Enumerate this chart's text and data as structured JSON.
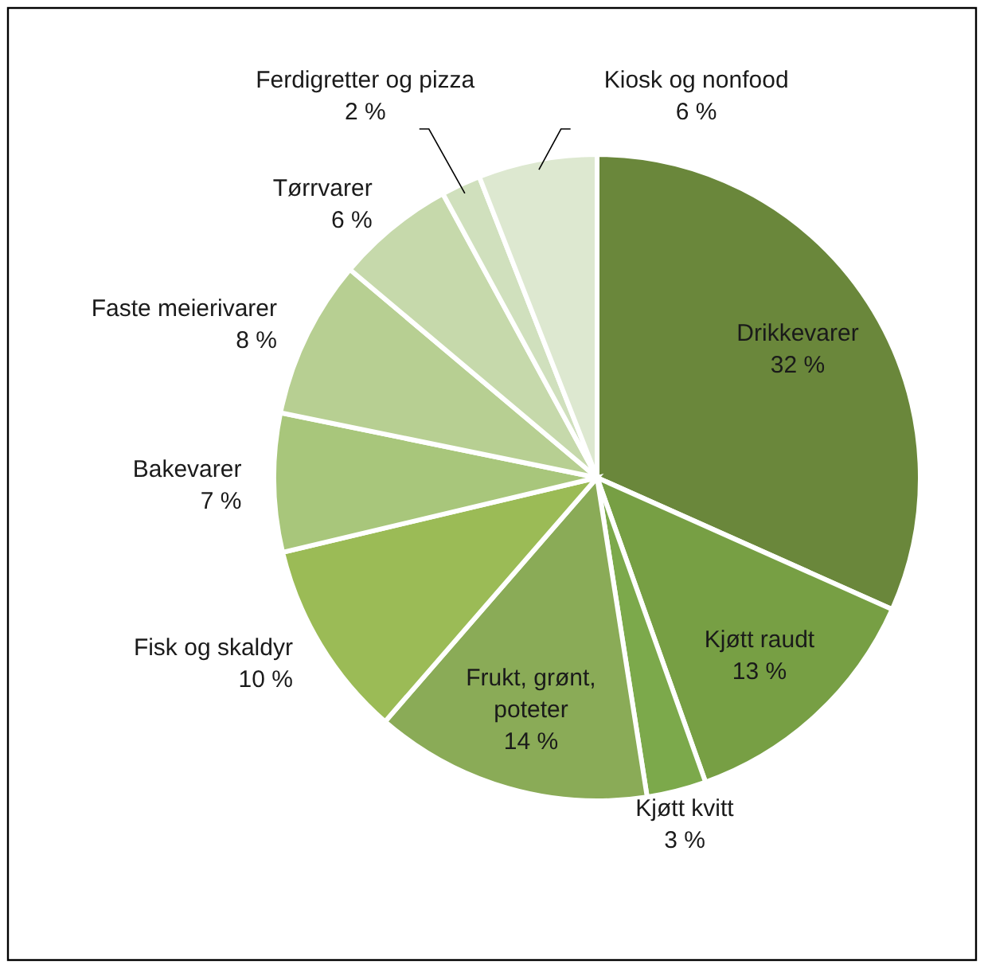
{
  "chart_data": {
    "type": "pie",
    "categories": [
      "Drikkevarer",
      "Kjøtt raudt",
      "Kjøtt kvitt",
      "Frukt, grønt, poteter",
      "Fisk og skaldyr",
      "Bakevarer",
      "Faste meierivarer",
      "Tørrvarer",
      "Ferdigretter og pizza",
      "Kiosk og nonfood"
    ],
    "values": [
      32,
      13,
      3,
      14,
      10,
      7,
      8,
      6,
      2,
      6
    ],
    "value_labels": [
      "32 %",
      "13 %",
      "3 %",
      "14 %",
      "10 %",
      "7 %",
      "8 %",
      "6 %",
      "2 %",
      "6 %"
    ],
    "colors": [
      "#6a873b",
      "#779f44",
      "#7ca94b",
      "#8aab57",
      "#9bbb56",
      "#a8c67b",
      "#b7cf92",
      "#c6d9ab",
      "#d0e0bd",
      "#dde8d0"
    ]
  }
}
